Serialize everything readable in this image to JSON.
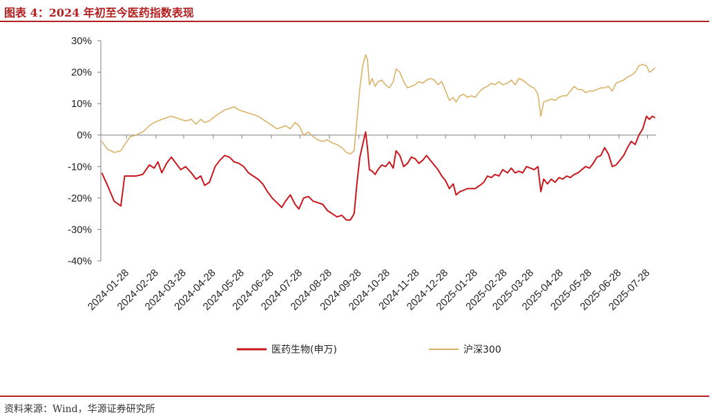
{
  "header": {
    "title": "图表 4：2024 年初至今医药指数表现"
  },
  "footer": {
    "source": "资料来源：Wind，华源证券研究所"
  },
  "colors": {
    "accent": "#b21f1f",
    "medicine": "#c8161d",
    "hs300": "#d9ae5f",
    "axis": "#7f7f7f"
  },
  "chart_data": {
    "type": "line",
    "title": "",
    "xlabel": "",
    "ylabel": "",
    "ylim": [
      -40,
      30
    ],
    "yticks": [
      "30%",
      "20%",
      "10%",
      "0%",
      "-10%",
      "-20%",
      "-30%",
      "-40%"
    ],
    "grid": false,
    "legend": "bottom",
    "categories": [
      "2024-01-28",
      "2024-02-28",
      "2024-03-28",
      "2024-04-28",
      "2024-05-28",
      "2024-06-28",
      "2024-07-28",
      "2024-08-28",
      "2024-09-28",
      "2024-10-28",
      "2024-11-28",
      "2024-12-28",
      "2025-01-28",
      "2025-02-28",
      "2025-03-28",
      "2025-04-28",
      "2025-05-28",
      "2025-06-28",
      "2025-07-28"
    ],
    "series": [
      {
        "name": "医药生物(申万)",
        "color": "#c8161d",
        "points": [
          [
            "2024-01-02",
            -12
          ],
          [
            "2024-01-08",
            -16
          ],
          [
            "2024-01-15",
            -21
          ],
          [
            "2024-01-22",
            -22.5
          ],
          [
            "2024-01-26",
            -13
          ],
          [
            "2024-02-01",
            -13
          ],
          [
            "2024-02-07",
            -13
          ],
          [
            "2024-02-14",
            -12.5
          ],
          [
            "2024-02-21",
            -9.5
          ],
          [
            "2024-02-26",
            -10.5
          ],
          [
            "2024-03-01",
            -8.5
          ],
          [
            "2024-03-05",
            -12
          ],
          [
            "2024-03-10",
            -9
          ],
          [
            "2024-03-15",
            -7
          ],
          [
            "2024-03-20",
            -9
          ],
          [
            "2024-03-25",
            -11
          ],
          [
            "2024-03-30",
            -10
          ],
          [
            "2024-04-05",
            -12
          ],
          [
            "2024-04-10",
            -14
          ],
          [
            "2024-04-15",
            -13
          ],
          [
            "2024-04-19",
            -16
          ],
          [
            "2024-04-24",
            -15
          ],
          [
            "2024-04-30",
            -10
          ],
          [
            "2024-05-05",
            -8
          ],
          [
            "2024-05-10",
            -6.5
          ],
          [
            "2024-05-15",
            -7
          ],
          [
            "2024-05-20",
            -8.5
          ],
          [
            "2024-05-25",
            -9
          ],
          [
            "2024-05-30",
            -10
          ],
          [
            "2024-06-04",
            -12
          ],
          [
            "2024-06-09",
            -13
          ],
          [
            "2024-06-14",
            -14
          ],
          [
            "2024-06-19",
            -15.5
          ],
          [
            "2024-06-24",
            -18
          ],
          [
            "2024-06-29",
            -20
          ],
          [
            "2024-07-04",
            -21.5
          ],
          [
            "2024-07-09",
            -23
          ],
          [
            "2024-07-13",
            -21
          ],
          [
            "2024-07-18",
            -19
          ],
          [
            "2024-07-23",
            -22
          ],
          [
            "2024-07-27",
            -23.5
          ],
          [
            "2024-08-01",
            -20
          ],
          [
            "2024-08-06",
            -19.5
          ],
          [
            "2024-08-11",
            -21
          ],
          [
            "2024-08-16",
            -21.5
          ],
          [
            "2024-08-21",
            -22
          ],
          [
            "2024-08-26",
            -24
          ],
          [
            "2024-08-31",
            -25
          ],
          [
            "2024-09-05",
            -26
          ],
          [
            "2024-09-10",
            -25.5
          ],
          [
            "2024-09-15",
            -27
          ],
          [
            "2024-09-19",
            -27
          ],
          [
            "2024-09-23",
            -25
          ],
          [
            "2024-09-26",
            -15
          ],
          [
            "2024-09-29",
            -7
          ],
          [
            "2024-10-02",
            -3
          ],
          [
            "2024-10-05",
            1
          ],
          [
            "2024-10-07",
            -4
          ],
          [
            "2024-10-09",
            -11
          ],
          [
            "2024-10-12",
            -11.5
          ],
          [
            "2024-10-15",
            -12.5
          ],
          [
            "2024-10-18",
            -11
          ],
          [
            "2024-10-22",
            -9.5
          ],
          [
            "2024-10-26",
            -10
          ],
          [
            "2024-10-30",
            -8.5
          ],
          [
            "2024-11-03",
            -10.5
          ],
          [
            "2024-11-06",
            -5
          ],
          [
            "2024-11-10",
            -6.5
          ],
          [
            "2024-11-14",
            -10
          ],
          [
            "2024-11-18",
            -9
          ],
          [
            "2024-11-22",
            -7
          ],
          [
            "2024-11-26",
            -7.5
          ],
          [
            "2024-11-30",
            -9
          ],
          [
            "2024-12-04",
            -8
          ],
          [
            "2024-12-08",
            -6.5
          ],
          [
            "2024-12-12",
            -8
          ],
          [
            "2024-12-16",
            -9.5
          ],
          [
            "2024-12-20",
            -11
          ],
          [
            "2024-12-24",
            -13
          ],
          [
            "2024-12-28",
            -14.5
          ],
          [
            "2025-01-01",
            -17
          ],
          [
            "2025-01-05",
            -15.5
          ],
          [
            "2025-01-08",
            -19
          ],
          [
            "2025-01-12",
            -18
          ],
          [
            "2025-01-16",
            -17.5
          ],
          [
            "2025-01-20",
            -17
          ],
          [
            "2025-01-24",
            -17
          ],
          [
            "2025-01-28",
            -17
          ],
          [
            "2025-02-02",
            -16
          ],
          [
            "2025-02-06",
            -15
          ],
          [
            "2025-02-10",
            -13
          ],
          [
            "2025-02-14",
            -13.5
          ],
          [
            "2025-02-18",
            -12.5
          ],
          [
            "2025-02-22",
            -13
          ],
          [
            "2025-02-26",
            -11
          ],
          [
            "2025-03-03",
            -12
          ],
          [
            "2025-03-07",
            -10.5
          ],
          [
            "2025-03-11",
            -12
          ],
          [
            "2025-03-15",
            -11.5
          ],
          [
            "2025-03-19",
            -12
          ],
          [
            "2025-03-23",
            -10
          ],
          [
            "2025-03-27",
            -10.5
          ],
          [
            "2025-03-31",
            -11
          ],
          [
            "2025-04-04",
            -10
          ],
          [
            "2025-04-07",
            -18
          ],
          [
            "2025-04-10",
            -14
          ],
          [
            "2025-04-14",
            -15.5
          ],
          [
            "2025-04-18",
            -14
          ],
          [
            "2025-04-22",
            -15
          ],
          [
            "2025-04-26",
            -13.5
          ],
          [
            "2025-04-30",
            -14
          ],
          [
            "2025-05-04",
            -13
          ],
          [
            "2025-05-08",
            -13.5
          ],
          [
            "2025-05-12",
            -12.5
          ],
          [
            "2025-05-16",
            -12
          ],
          [
            "2025-05-20",
            -11
          ],
          [
            "2025-05-24",
            -10
          ],
          [
            "2025-05-28",
            -10.5
          ],
          [
            "2025-06-01",
            -9
          ],
          [
            "2025-06-05",
            -7
          ],
          [
            "2025-06-09",
            -6.5
          ],
          [
            "2025-06-13",
            -4
          ],
          [
            "2025-06-17",
            -6
          ],
          [
            "2025-06-21",
            -10
          ],
          [
            "2025-06-25",
            -9.5
          ],
          [
            "2025-06-29",
            -8
          ],
          [
            "2025-07-03",
            -6.5
          ],
          [
            "2025-07-07",
            -4
          ],
          [
            "2025-07-11",
            -2
          ],
          [
            "2025-07-15",
            -3
          ],
          [
            "2025-07-19",
            0
          ],
          [
            "2025-07-23",
            2
          ],
          [
            "2025-07-27",
            6
          ],
          [
            "2025-07-30",
            5
          ],
          [
            "2025-08-02",
            6
          ],
          [
            "2025-08-05",
            5.5
          ]
        ]
      },
      {
        "name": "沪深300",
        "color": "#d9ae5f",
        "points": [
          [
            "2024-01-02",
            -2
          ],
          [
            "2024-01-08",
            -4.5
          ],
          [
            "2024-01-15",
            -5.5
          ],
          [
            "2024-01-22",
            -5
          ],
          [
            "2024-01-26",
            -3
          ],
          [
            "2024-02-01",
            -0.5
          ],
          [
            "2024-02-07",
            0
          ],
          [
            "2024-02-14",
            1
          ],
          [
            "2024-02-21",
            3
          ],
          [
            "2024-02-26",
            4
          ],
          [
            "2024-03-01",
            4.5
          ],
          [
            "2024-03-05",
            5
          ],
          [
            "2024-03-10",
            5.5
          ],
          [
            "2024-03-15",
            6
          ],
          [
            "2024-03-20",
            5.5
          ],
          [
            "2024-03-25",
            5
          ],
          [
            "2024-03-30",
            4.5
          ],
          [
            "2024-04-05",
            5
          ],
          [
            "2024-04-10",
            3.5
          ],
          [
            "2024-04-15",
            5
          ],
          [
            "2024-04-19",
            4
          ],
          [
            "2024-04-24",
            4.5
          ],
          [
            "2024-04-30",
            6
          ],
          [
            "2024-05-05",
            7
          ],
          [
            "2024-05-10",
            8
          ],
          [
            "2024-05-15",
            8.5
          ],
          [
            "2024-05-20",
            9
          ],
          [
            "2024-05-25",
            8
          ],
          [
            "2024-05-30",
            7.5
          ],
          [
            "2024-06-04",
            7
          ],
          [
            "2024-06-09",
            6.5
          ],
          [
            "2024-06-14",
            6
          ],
          [
            "2024-06-19",
            5
          ],
          [
            "2024-06-24",
            4
          ],
          [
            "2024-06-29",
            3
          ],
          [
            "2024-07-04",
            2
          ],
          [
            "2024-07-09",
            2.5
          ],
          [
            "2024-07-13",
            3
          ],
          [
            "2024-07-18",
            2
          ],
          [
            "2024-07-23",
            4
          ],
          [
            "2024-07-27",
            3
          ],
          [
            "2024-08-01",
            0
          ],
          [
            "2024-08-06",
            1
          ],
          [
            "2024-08-11",
            -0.5
          ],
          [
            "2024-08-16",
            -1.5
          ],
          [
            "2024-08-21",
            -2
          ],
          [
            "2024-08-26",
            -1.5
          ],
          [
            "2024-08-31",
            -2.5
          ],
          [
            "2024-09-05",
            -3
          ],
          [
            "2024-09-10",
            -4
          ],
          [
            "2024-09-15",
            -5.5
          ],
          [
            "2024-09-19",
            -6
          ],
          [
            "2024-09-23",
            -5
          ],
          [
            "2024-09-26",
            5
          ],
          [
            "2024-09-29",
            15
          ],
          [
            "2024-10-02",
            22
          ],
          [
            "2024-10-05",
            25.5
          ],
          [
            "2024-10-07",
            24
          ],
          [
            "2024-10-09",
            16
          ],
          [
            "2024-10-12",
            18
          ],
          [
            "2024-10-15",
            15.5
          ],
          [
            "2024-10-18",
            17
          ],
          [
            "2024-10-22",
            17.5
          ],
          [
            "2024-10-26",
            16
          ],
          [
            "2024-10-30",
            15
          ],
          [
            "2024-11-03",
            17
          ],
          [
            "2024-11-06",
            21
          ],
          [
            "2024-11-10",
            20
          ],
          [
            "2024-11-14",
            17
          ],
          [
            "2024-11-18",
            15
          ],
          [
            "2024-11-22",
            15.5
          ],
          [
            "2024-11-26",
            16
          ],
          [
            "2024-11-30",
            17
          ],
          [
            "2024-12-04",
            16.5
          ],
          [
            "2024-12-08",
            17.5
          ],
          [
            "2024-12-12",
            18
          ],
          [
            "2024-12-16",
            17.5
          ],
          [
            "2024-12-20",
            16
          ],
          [
            "2024-12-24",
            17
          ],
          [
            "2024-12-28",
            14
          ],
          [
            "2025-01-01",
            11
          ],
          [
            "2025-01-05",
            12
          ],
          [
            "2025-01-08",
            10.5
          ],
          [
            "2025-01-12",
            12.5
          ],
          [
            "2025-01-16",
            13
          ],
          [
            "2025-01-20",
            12
          ],
          [
            "2025-01-24",
            12.5
          ],
          [
            "2025-01-28",
            12
          ],
          [
            "2025-02-02",
            14
          ],
          [
            "2025-02-06",
            15
          ],
          [
            "2025-02-10",
            15.5
          ],
          [
            "2025-02-14",
            16.5
          ],
          [
            "2025-02-18",
            16
          ],
          [
            "2025-02-22",
            17
          ],
          [
            "2025-02-26",
            16
          ],
          [
            "2025-03-03",
            16.5
          ],
          [
            "2025-03-07",
            17.5
          ],
          [
            "2025-03-11",
            16
          ],
          [
            "2025-03-15",
            18
          ],
          [
            "2025-03-19",
            17.5
          ],
          [
            "2025-03-23",
            16.5
          ],
          [
            "2025-03-27",
            15.5
          ],
          [
            "2025-03-31",
            15
          ],
          [
            "2025-04-04",
            13
          ],
          [
            "2025-04-07",
            6
          ],
          [
            "2025-04-10",
            10.5
          ],
          [
            "2025-04-14",
            11
          ],
          [
            "2025-04-18",
            11.5
          ],
          [
            "2025-04-22",
            11
          ],
          [
            "2025-04-26",
            12
          ],
          [
            "2025-04-30",
            12.5
          ],
          [
            "2025-05-04",
            12.5
          ],
          [
            "2025-05-08",
            14
          ],
          [
            "2025-05-12",
            15.5
          ],
          [
            "2025-05-16",
            14.5
          ],
          [
            "2025-05-20",
            14.5
          ],
          [
            "2025-05-24",
            13.5
          ],
          [
            "2025-05-28",
            14
          ],
          [
            "2025-06-01",
            14
          ],
          [
            "2025-06-05",
            14.5
          ],
          [
            "2025-06-09",
            15
          ],
          [
            "2025-06-13",
            15
          ],
          [
            "2025-06-17",
            15.5
          ],
          [
            "2025-06-21",
            14
          ],
          [
            "2025-06-25",
            16.5
          ],
          [
            "2025-06-29",
            17
          ],
          [
            "2025-07-03",
            17.5
          ],
          [
            "2025-07-07",
            18.5
          ],
          [
            "2025-07-11",
            19
          ],
          [
            "2025-07-15",
            20
          ],
          [
            "2025-07-19",
            22
          ],
          [
            "2025-07-23",
            22.5
          ],
          [
            "2025-07-27",
            22
          ],
          [
            "2025-07-30",
            20
          ],
          [
            "2025-08-02",
            20.5
          ],
          [
            "2025-08-05",
            21.5
          ]
        ]
      }
    ]
  }
}
